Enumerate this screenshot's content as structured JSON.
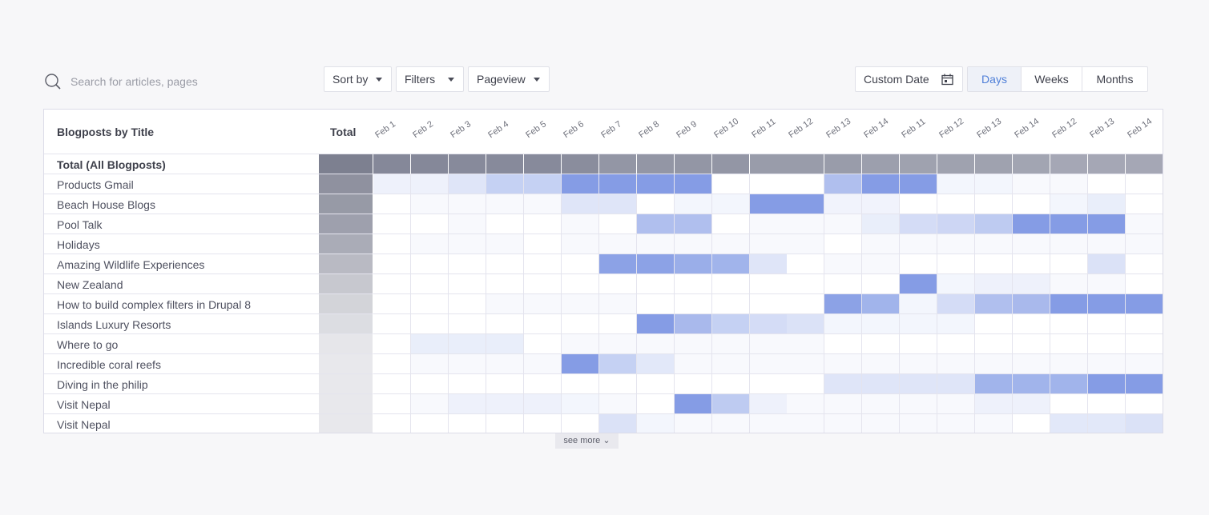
{
  "search": {
    "placeholder": "Search for articles, pages"
  },
  "dropdowns": [
    {
      "label": "Sort by"
    },
    {
      "label": "Filters"
    },
    {
      "label": "Pageview"
    }
  ],
  "custom_date": {
    "label": "Custom Date"
  },
  "range_tabs": [
    {
      "label": "Days",
      "active": true
    },
    {
      "label": "Weeks",
      "active": false
    },
    {
      "label": "Months",
      "active": false
    }
  ],
  "table": {
    "title_header": "Blogposts by Title",
    "total_header": "Total",
    "days": [
      "Feb 1",
      "Feb 2",
      "Feb 3",
      "Feb 4",
      "Feb 5",
      "Feb 6",
      "Feb 7",
      "Feb 8",
      "Feb 9",
      "Feb 10",
      "Feb 11",
      "Feb 12",
      "Feb 13",
      "Feb 14",
      "Feb 11",
      "Feb 12",
      "Feb 13",
      "Feb 14",
      "Feb 12",
      "Feb 13",
      "Feb 14"
    ],
    "rows": [
      {
        "label": "Total (All Blogposts)",
        "bold": true
      },
      {
        "label": "Products Gmail"
      },
      {
        "label": "Beach House Blogs"
      },
      {
        "label": "Pool Talk"
      },
      {
        "label": "Holidays"
      },
      {
        "label": "Amazing Wildlife Experiences"
      },
      {
        "label": "New Zealand"
      },
      {
        "label": "How to build complex filters in Drupal 8"
      },
      {
        "label": "Islands Luxury Resorts"
      },
      {
        "label": "Where to go"
      },
      {
        "label": "Incredible coral reefs"
      },
      {
        "label": "Diving in the philip"
      },
      {
        "label": "Visit Nepal"
      },
      {
        "label": "Visit Nepal"
      }
    ],
    "totals_intensity": [
      1.0,
      0.85,
      0.78,
      0.72,
      0.62,
      0.5,
      0.38,
      0.28,
      0.2,
      0.12,
      0.1,
      0.1,
      0.1,
      0.1
    ],
    "heat": [
      [
        0.98,
        0.98,
        0.95,
        0.95,
        0.95,
        0.9,
        0.75,
        0.75,
        0.75,
        0.75,
        0.65,
        0.65,
        0.65,
        0.6,
        0.55,
        0.55,
        0.55,
        0.5,
        0.45,
        0.45,
        0.45
      ],
      [
        0.12,
        0.12,
        0.22,
        0.4,
        0.4,
        0.85,
        0.85,
        0.85,
        0.85,
        0,
        0,
        0,
        0.55,
        0.85,
        0.85,
        0.08,
        0.08,
        0.05,
        0.05,
        0,
        0
      ],
      [
        0,
        0.05,
        0.05,
        0.05,
        0.05,
        0.22,
        0.22,
        0,
        0.08,
        0.08,
        0.85,
        0.85,
        0.1,
        0.1,
        0,
        0,
        0,
        0,
        0.08,
        0.15,
        0
      ],
      [
        0,
        0,
        0.05,
        0,
        0,
        0.05,
        0,
        0.55,
        0.55,
        0,
        0.05,
        0.05,
        0.05,
        0.15,
        0.3,
        0.35,
        0.45,
        0.85,
        0.85,
        0.85,
        0.05
      ],
      [
        0,
        0.05,
        0.05,
        0.05,
        0,
        0.05,
        0.05,
        0.05,
        0.05,
        0.05,
        0.05,
        0.05,
        0,
        0.05,
        0.05,
        0.05,
        0.05,
        0.05,
        0.05,
        0.05,
        0.05
      ],
      [
        0,
        0,
        0,
        0,
        0,
        0,
        0.8,
        0.8,
        0.7,
        0.65,
        0.22,
        0,
        0.05,
        0.05,
        0,
        0,
        0,
        0,
        0,
        0.25,
        0
      ],
      [
        0,
        0,
        0,
        0,
        0,
        0,
        0,
        0,
        0,
        0,
        0,
        0,
        0,
        0,
        0.85,
        0.08,
        0.12,
        0.12,
        0.05,
        0.05,
        0
      ],
      [
        0,
        0,
        0,
        0.05,
        0.05,
        0.05,
        0.05,
        0,
        0,
        0,
        0,
        0,
        0.8,
        0.65,
        0.08,
        0.3,
        0.55,
        0.6,
        0.85,
        0.85,
        0.85
      ],
      [
        0,
        0,
        0,
        0,
        0,
        0,
        0,
        0.85,
        0.6,
        0.4,
        0.3,
        0.25,
        0.08,
        0.08,
        0.08,
        0.08,
        0,
        0,
        0,
        0,
        0
      ],
      [
        0,
        0.15,
        0.15,
        0.15,
        0,
        0.05,
        0.05,
        0.05,
        0.05,
        0.05,
        0.05,
        0.05,
        0,
        0,
        0,
        0,
        0,
        0,
        0,
        0,
        0
      ],
      [
        0,
        0.05,
        0.05,
        0.05,
        0.05,
        0.85,
        0.4,
        0.2,
        0.05,
        0.05,
        0.05,
        0.05,
        0.05,
        0.05,
        0.05,
        0.05,
        0.05,
        0.05,
        0.05,
        0.05,
        0.05
      ],
      [
        0,
        0,
        0,
        0,
        0,
        0,
        0,
        0,
        0,
        0,
        0,
        0,
        0.22,
        0.22,
        0.22,
        0.22,
        0.65,
        0.65,
        0.65,
        0.85,
        0.85
      ],
      [
        0,
        0.05,
        0.12,
        0.12,
        0.12,
        0.08,
        0.05,
        0,
        0.85,
        0.45,
        0.12,
        0.05,
        0.05,
        0.05,
        0.05,
        0.05,
        0.12,
        0.12,
        0,
        0,
        0
      ],
      [
        0,
        0,
        0,
        0,
        0,
        0,
        0.25,
        0.08,
        0.05,
        0.05,
        0.05,
        0.05,
        0.05,
        0.05,
        0.05,
        0.05,
        0.05,
        0,
        0.2,
        0.2,
        0.25
      ]
    ],
    "see_more": "see more"
  },
  "colors": {
    "heat_blue": "#6f8be0",
    "total_gray": "#7d8090",
    "accent": "#4f7fd8"
  }
}
